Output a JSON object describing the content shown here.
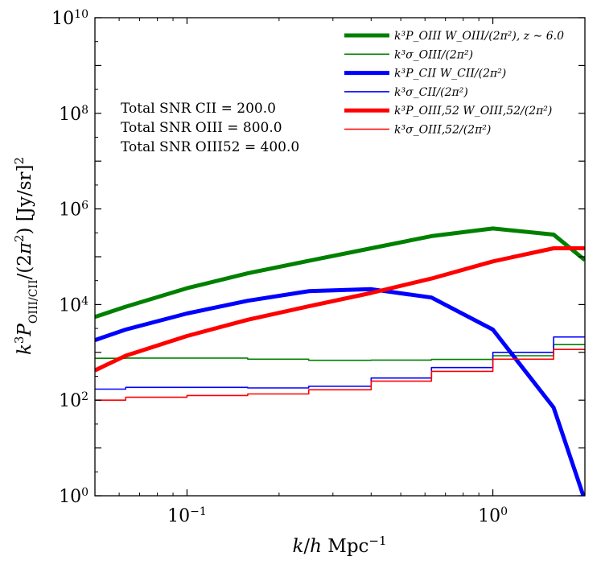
{
  "chart_data": {
    "type": "line",
    "xscale": "log",
    "yscale": "log",
    "xlim": [
      0.05,
      2.0
    ],
    "ylim": [
      1,
      10000000000
    ],
    "xlabel": "k/h Mpc⁻¹",
    "ylabel": "k³P_OIII/CII/(2π²) [Jy/sr]²",
    "x_ticks": [
      {
        "value": 0.1,
        "base": "10",
        "exp": "−1"
      },
      {
        "value": 1,
        "base": "10",
        "exp": "0"
      }
    ],
    "y_ticks": [
      {
        "value": 1,
        "base": "10",
        "exp": "0"
      },
      {
        "value": 100,
        "base": "10",
        "exp": "2"
      },
      {
        "value": 10000,
        "base": "10",
        "exp": "4"
      },
      {
        "value": 1000000,
        "base": "10",
        "exp": "6"
      },
      {
        "value": 100000000,
        "base": "10",
        "exp": "8"
      },
      {
        "value": 10000000000,
        "base": "10",
        "exp": "10"
      }
    ],
    "legend_position": "top-right",
    "annotations": [
      "Total SNR CII = 200.0",
      "Total SNR OIII = 800.0",
      "Total SNR OIII52 = 400.0"
    ],
    "series": [
      {
        "name": "k³P_OIII W_OIII/(2π²), z ∼ 6.0",
        "color": "#008000",
        "style": "line-thick",
        "points": [
          [
            0.05,
            5500
          ],
          [
            0.063,
            9000
          ],
          [
            0.1,
            22000
          ],
          [
            0.158,
            45000
          ],
          [
            0.25,
            82000
          ],
          [
            0.4,
            150000
          ],
          [
            0.63,
            270000
          ],
          [
            1.0,
            390000
          ],
          [
            1.58,
            290000
          ],
          [
            2.0,
            85000
          ]
        ]
      },
      {
        "name": "k³σ_OIII/(2π²)",
        "color": "#008000",
        "style": "step-thin",
        "bins": [
          [
            0.05,
            0.063,
            750
          ],
          [
            0.063,
            0.1,
            760
          ],
          [
            0.1,
            0.158,
            760
          ],
          [
            0.158,
            0.25,
            720
          ],
          [
            0.25,
            0.4,
            680
          ],
          [
            0.4,
            0.63,
            690
          ],
          [
            0.63,
            1.0,
            710
          ],
          [
            1.0,
            1.58,
            850
          ],
          [
            1.58,
            2.0,
            1450
          ]
        ]
      },
      {
        "name": "k³P_CII W_CII/(2π²)",
        "color": "#0000ff",
        "style": "line-thick",
        "points": [
          [
            0.05,
            1800
          ],
          [
            0.063,
            3000
          ],
          [
            0.1,
            6500
          ],
          [
            0.158,
            12000
          ],
          [
            0.25,
            19000
          ],
          [
            0.4,
            21000
          ],
          [
            0.63,
            14000
          ],
          [
            1.0,
            3000
          ],
          [
            1.58,
            70
          ],
          [
            2.0,
            0.8
          ]
        ]
      },
      {
        "name": "k³σ_CII/(2π²)",
        "color": "#0000ff",
        "style": "step-thin",
        "bins": [
          [
            0.05,
            0.063,
            170
          ],
          [
            0.063,
            0.1,
            185
          ],
          [
            0.1,
            0.158,
            185
          ],
          [
            0.158,
            0.25,
            180
          ],
          [
            0.25,
            0.4,
            195
          ],
          [
            0.4,
            0.63,
            290
          ],
          [
            0.63,
            1.0,
            480
          ],
          [
            1.0,
            1.58,
            1000
          ],
          [
            1.58,
            2.0,
            2100
          ]
        ]
      },
      {
        "name": "k³P_OIII,52 W_OIII,52/(2π²)",
        "color": "#ff0000",
        "style": "line-thick",
        "points": [
          [
            0.05,
            420
          ],
          [
            0.063,
            850
          ],
          [
            0.1,
            2200
          ],
          [
            0.158,
            4800
          ],
          [
            0.25,
            9200
          ],
          [
            0.4,
            17500
          ],
          [
            0.63,
            35000
          ],
          [
            1.0,
            80000
          ],
          [
            1.58,
            150000
          ],
          [
            2.0,
            150000
          ]
        ]
      },
      {
        "name": "k³σ_OIII,52/(2π²)",
        "color": "#ff0000",
        "style": "step-thin",
        "bins": [
          [
            0.05,
            0.063,
            100
          ],
          [
            0.063,
            0.1,
            115
          ],
          [
            0.1,
            0.158,
            125
          ],
          [
            0.158,
            0.25,
            135
          ],
          [
            0.25,
            0.4,
            165
          ],
          [
            0.4,
            0.63,
            250
          ],
          [
            0.63,
            1.0,
            400
          ],
          [
            1.0,
            1.58,
            720
          ],
          [
            1.58,
            2.0,
            1150
          ]
        ]
      }
    ]
  }
}
